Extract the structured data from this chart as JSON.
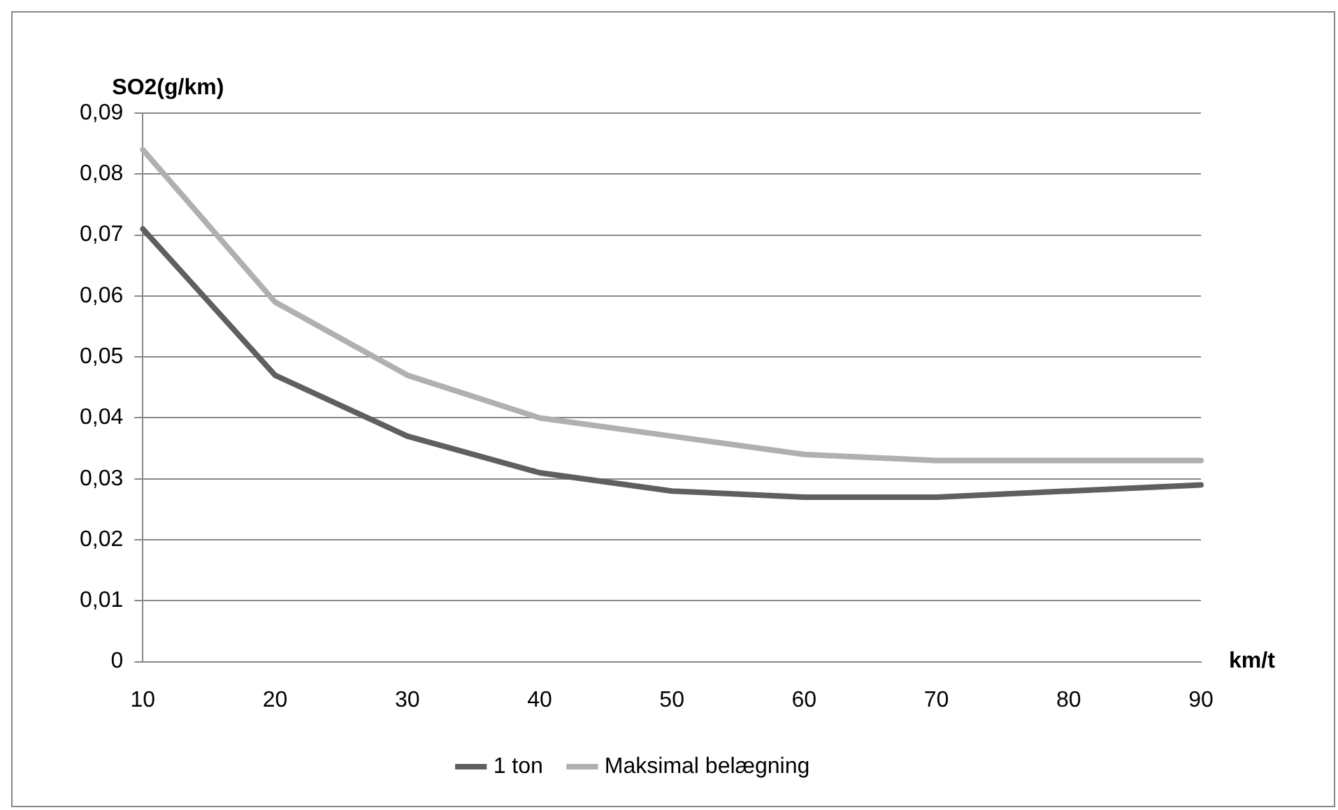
{
  "chart_data": {
    "type": "line",
    "ylabel": "SO2(g/km)",
    "xlabel": "km/t",
    "categories": [
      "10",
      "20",
      "30",
      "40",
      "50",
      "60",
      "70",
      "80",
      "90"
    ],
    "series": [
      {
        "name": "1 ton",
        "color": "#5f5f5f",
        "values": [
          0.071,
          0.047,
          0.037,
          0.031,
          0.028,
          0.027,
          0.027,
          0.028,
          0.029
        ]
      },
      {
        "name": "Maksimal belægning",
        "color": "#b0b0b0",
        "values": [
          0.084,
          0.059,
          0.047,
          0.04,
          0.037,
          0.034,
          0.033,
          0.033,
          0.033
        ]
      }
    ],
    "ylim": [
      0,
      0.09
    ],
    "yticks": [
      0,
      {
        "value": 0.01,
        "label": "0,01"
      },
      {
        "value": 0.02,
        "label": "0,02"
      },
      {
        "value": 0.03,
        "label": "0,03"
      },
      {
        "value": 0.04,
        "label": "0,04"
      },
      {
        "value": 0.05,
        "label": "0,05"
      },
      {
        "value": 0.06,
        "label": "0,06"
      },
      {
        "value": 0.07,
        "label": "0,07"
      },
      {
        "value": 0.08,
        "label": "0,08"
      },
      {
        "value": 0.09,
        "label": "0,09"
      }
    ],
    "grid": "y",
    "legend": "bottom",
    "marker": "none",
    "line_style": "solid"
  }
}
